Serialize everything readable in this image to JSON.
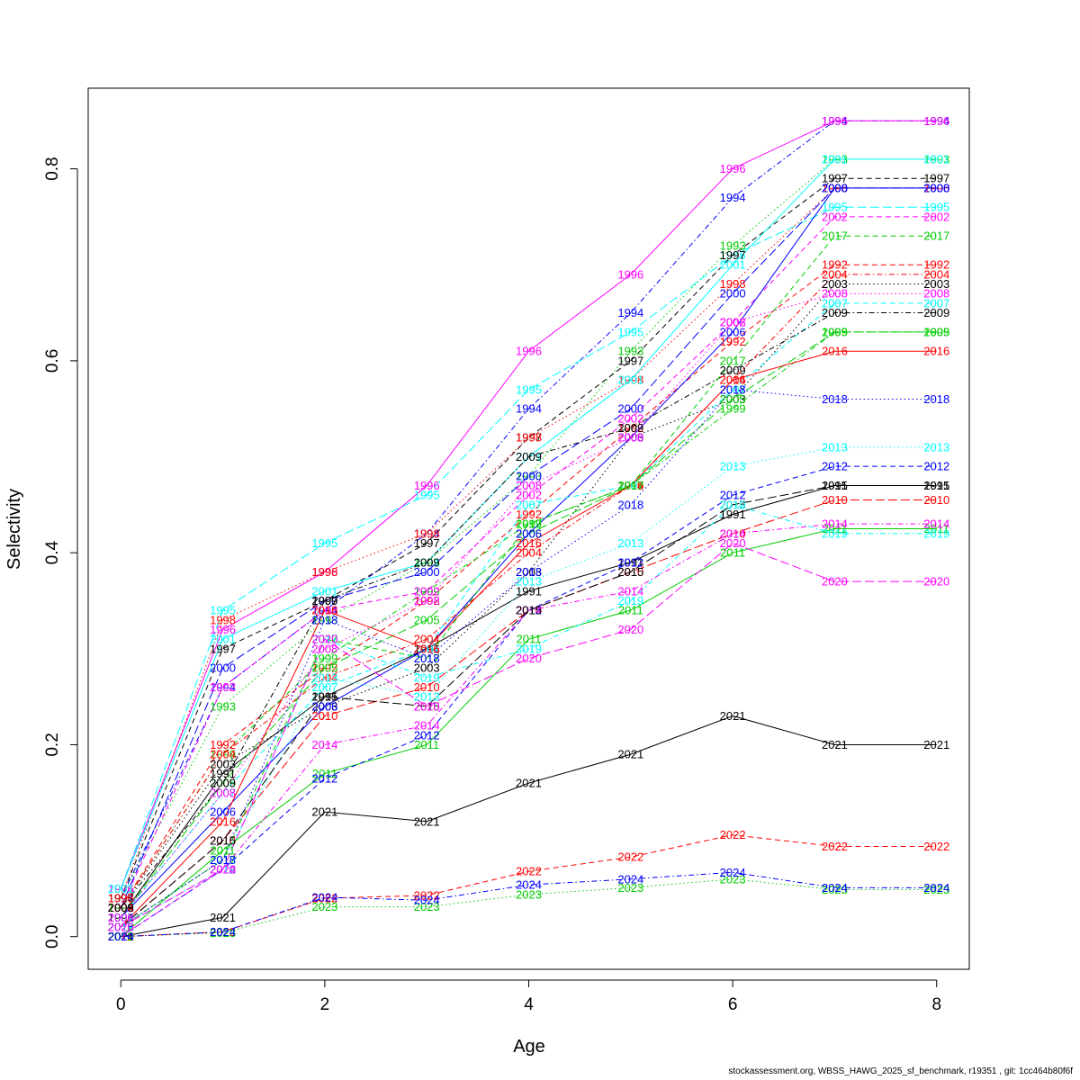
{
  "footer": "stockassessment.org, WBSS_HAWG_2025_sf_benchmark, r19351 , git: 1cc464b80f6f",
  "chart_data": {
    "type": "line",
    "title": "",
    "xlabel": "Age",
    "ylabel": "Selectivity",
    "xlim": [
      -0.32,
      8.32
    ],
    "ylim": [
      -0.034,
      0.884
    ],
    "x": [
      0,
      1,
      2,
      3,
      4,
      5,
      6,
      7,
      8
    ],
    "x_ticks": [
      0,
      2,
      4,
      6,
      8
    ],
    "y_ticks": [
      0.0,
      0.2,
      0.4,
      0.6,
      0.8
    ],
    "grid": false,
    "legend": "none",
    "series": [
      {
        "name": "1991",
        "color": "#000000",
        "dash": "solid",
        "values": [
          0.02,
          0.17,
          0.25,
          0.3,
          0.36,
          0.39,
          0.44,
          0.47,
          0.47
        ]
      },
      {
        "name": "1992",
        "color": "#ff0000",
        "dash": "dashed",
        "values": [
          0.03,
          0.2,
          0.28,
          0.35,
          0.44,
          0.53,
          0.62,
          0.7,
          0.7
        ]
      },
      {
        "name": "1993",
        "color": "#00cd00",
        "dash": "dotted",
        "values": [
          0.04,
          0.24,
          0.33,
          0.39,
          0.48,
          0.61,
          0.72,
          0.81,
          0.81
        ]
      },
      {
        "name": "1994",
        "color": "#0000ff",
        "dash": "dotdash",
        "values": [
          0.04,
          0.26,
          0.34,
          0.42,
          0.55,
          0.65,
          0.77,
          0.85,
          0.85
        ]
      },
      {
        "name": "1995",
        "color": "#00ffff",
        "dash": "longdash",
        "values": [
          0.05,
          0.34,
          0.41,
          0.46,
          0.57,
          0.63,
          0.71,
          0.76,
          0.76
        ]
      },
      {
        "name": "1996",
        "color": "#ff00ff",
        "dash": "solid",
        "values": [
          0.05,
          0.32,
          0.38,
          0.47,
          0.61,
          0.69,
          0.8,
          0.85,
          0.85
        ]
      },
      {
        "name": "1997",
        "color": "#000000",
        "dash": "dashed",
        "values": [
          0.04,
          0.3,
          0.35,
          0.41,
          0.52,
          0.6,
          0.71,
          0.79,
          0.79
        ]
      },
      {
        "name": "1998",
        "color": "#ff0000",
        "dash": "dotted",
        "values": [
          0.04,
          0.33,
          0.38,
          0.42,
          0.52,
          0.58,
          0.68,
          0.78,
          0.78
        ]
      },
      {
        "name": "1999",
        "color": "#00cd00",
        "dash": "dotdash",
        "values": [
          0.03,
          0.19,
          0.29,
          0.36,
          0.43,
          0.47,
          0.55,
          0.63,
          0.63
        ]
      },
      {
        "name": "2000",
        "color": "#0000ff",
        "dash": "longdash",
        "values": [
          0.03,
          0.28,
          0.35,
          0.38,
          0.48,
          0.55,
          0.67,
          0.78,
          0.78
        ]
      },
      {
        "name": "2001",
        "color": "#00ffff",
        "dash": "solid",
        "values": [
          0.05,
          0.31,
          0.36,
          0.39,
          0.5,
          0.58,
          0.7,
          0.81,
          0.81
        ]
      },
      {
        "name": "2002",
        "color": "#ff00ff",
        "dash": "dashed",
        "values": [
          0.03,
          0.26,
          0.34,
          0.36,
          0.46,
          0.54,
          0.64,
          0.75,
          0.75
        ]
      },
      {
        "name": "2003",
        "color": "#000000",
        "dash": "dotted",
        "values": [
          0.03,
          0.18,
          0.24,
          0.28,
          0.38,
          0.52,
          0.56,
          0.68,
          0.68
        ]
      },
      {
        "name": "2004",
        "color": "#ff0000",
        "dash": "dotdash",
        "values": [
          0.03,
          0.19,
          0.27,
          0.31,
          0.4,
          0.47,
          0.58,
          0.69,
          0.69
        ]
      },
      {
        "name": "2005",
        "color": "#00cd00",
        "dash": "longdash",
        "values": [
          0.02,
          0.16,
          0.28,
          0.33,
          0.42,
          0.47,
          0.56,
          0.63,
          0.63
        ]
      },
      {
        "name": "2006",
        "color": "#0000ff",
        "dash": "solid",
        "values": [
          0.02,
          0.13,
          0.24,
          0.3,
          0.42,
          0.52,
          0.63,
          0.78,
          0.78
        ]
      },
      {
        "name": "2007",
        "color": "#00ffff",
        "dash": "dashed",
        "values": [
          0.02,
          0.15,
          0.26,
          0.3,
          0.45,
          0.47,
          0.57,
          0.66,
          0.66
        ]
      },
      {
        "name": "2008",
        "color": "#ff00ff",
        "dash": "dotted",
        "values": [
          0.02,
          0.15,
          0.3,
          0.35,
          0.47,
          0.52,
          0.64,
          0.67,
          0.67
        ]
      },
      {
        "name": "2009",
        "color": "#000000",
        "dash": "dotdash",
        "values": [
          0.03,
          0.16,
          0.35,
          0.39,
          0.5,
          0.53,
          0.59,
          0.65,
          0.65
        ]
      },
      {
        "name": "2010",
        "color": "#ff0000",
        "dash": "longdash",
        "values": [
          0.01,
          0.1,
          0.23,
          0.26,
          0.34,
          0.38,
          0.42,
          0.455,
          0.455
        ]
      },
      {
        "name": "2011",
        "color": "#00cd00",
        "dash": "solid",
        "values": [
          0.0,
          0.09,
          0.17,
          0.2,
          0.31,
          0.34,
          0.4,
          0.425,
          0.425
        ]
      },
      {
        "name": "2012",
        "color": "#0000ff",
        "dash": "dashed",
        "values": [
          0.0,
          0.07,
          0.165,
          0.21,
          0.34,
          0.39,
          0.46,
          0.49,
          0.49
        ]
      },
      {
        "name": "2013",
        "color": "#00ffff",
        "dash": "dotted",
        "values": [
          0.01,
          0.08,
          0.27,
          0.25,
          0.37,
          0.41,
          0.49,
          0.51,
          0.51
        ]
      },
      {
        "name": "2014",
        "color": "#ff00ff",
        "dash": "dotdash",
        "values": [
          0.0,
          0.07,
          0.2,
          0.22,
          0.34,
          0.36,
          0.42,
          0.43,
          0.43
        ]
      },
      {
        "name": "2015",
        "color": "#000000",
        "dash": "longdash",
        "values": [
          0.01,
          0.1,
          0.25,
          0.24,
          0.34,
          0.38,
          0.45,
          0.47,
          0.47
        ]
      },
      {
        "name": "2016",
        "color": "#ff0000",
        "dash": "solid",
        "values": [
          0.01,
          0.12,
          0.34,
          0.3,
          0.41,
          0.47,
          0.58,
          0.61,
          0.61
        ]
      },
      {
        "name": "2017",
        "color": "#00cd00",
        "dash": "dashed",
        "values": [
          0.01,
          0.08,
          0.31,
          0.29,
          0.43,
          0.47,
          0.6,
          0.73,
          0.73
        ]
      },
      {
        "name": "2018",
        "color": "#0000ff",
        "dash": "dotted",
        "values": [
          0.01,
          0.08,
          0.33,
          0.29,
          0.38,
          0.45,
          0.57,
          0.56,
          0.56
        ]
      },
      {
        "name": "2019",
        "color": "#00ffff",
        "dash": "dotdash",
        "values": [
          0.01,
          0.07,
          0.31,
          0.27,
          0.3,
          0.35,
          0.45,
          0.42,
          0.42
        ]
      },
      {
        "name": "2020",
        "color": "#ff00ff",
        "dash": "longdash",
        "values": [
          0.01,
          0.07,
          0.31,
          0.24,
          0.29,
          0.32,
          0.41,
          0.37,
          0.37
        ]
      },
      {
        "name": "2021",
        "color": "#000000",
        "dash": "solid",
        "values": [
          0.0,
          0.02,
          0.13,
          0.12,
          0.16,
          0.19,
          0.23,
          0.2,
          0.2
        ]
      },
      {
        "name": "2022",
        "color": "#ff0000",
        "dash": "dashed",
        "values": [
          0.0,
          0.005,
          0.04,
          0.043,
          0.068,
          0.083,
          0.106,
          0.094,
          0.094
        ]
      },
      {
        "name": "2023",
        "color": "#00cd00",
        "dash": "dotted",
        "values": [
          0.0,
          0.004,
          0.031,
          0.031,
          0.044,
          0.051,
          0.06,
          0.049,
          0.049
        ]
      },
      {
        "name": "2024",
        "color": "#0000ff",
        "dash": "dotdash",
        "values": [
          0.0,
          0.005,
          0.041,
          0.038,
          0.054,
          0.06,
          0.067,
          0.051,
          0.051
        ]
      }
    ]
  }
}
